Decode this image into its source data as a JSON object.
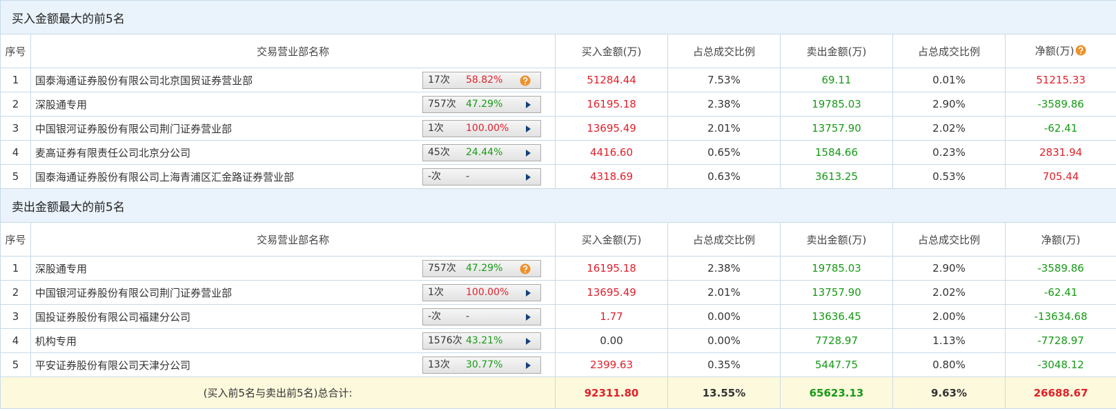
{
  "sections": [
    {
      "title": "买入金额最大的前5名",
      "header": [
        "序号",
        "交易营业部名称",
        "买入金额(万)",
        "占总成交比例",
        "卖出金额(万)",
        "占总成交比例",
        "净额(万)"
      ],
      "rows": [
        {
          "rank": "1",
          "name": "国泰海通证券股份有限公司北京国贸证券营业部",
          "count": "17次",
          "pct": "58.82%",
          "buy": "51284.44",
          "buy_ratio": "7.53%",
          "sell": "69.11",
          "sell_ratio": "0.01%",
          "net": "51215.33"
        },
        {
          "rank": "2",
          "name": "深股通专用",
          "count": "757次",
          "pct": "47.29%",
          "buy": "16195.18",
          "buy_ratio": "2.38%",
          "sell": "19785.03",
          "sell_ratio": "2.90%",
          "net": "-3589.86"
        },
        {
          "rank": "3",
          "name": "中国银河证券股份有限公司荆门证券营业部",
          "count": "1次",
          "pct": "100.00%",
          "buy": "13695.49",
          "buy_ratio": "2.01%",
          "sell": "13757.90",
          "sell_ratio": "2.02%",
          "net": "-62.41"
        },
        {
          "rank": "4",
          "name": "麦高证券有限责任公司北京分公司",
          "count": "45次",
          "pct": "24.44%",
          "buy": "4416.60",
          "buy_ratio": "0.65%",
          "sell": "1584.66",
          "sell_ratio": "0.23%",
          "net": "2831.94"
        },
        {
          "rank": "5",
          "name": "国泰海通证券股份有限公司上海青浦区汇金路证券营业部",
          "count": "-次",
          "pct": "-",
          "buy": "4318.69",
          "buy_ratio": "0.63%",
          "sell": "3613.25",
          "sell_ratio": "0.53%",
          "net": "705.44"
        }
      ]
    },
    {
      "title": "卖出金额最大的前5名",
      "header": [
        "序号",
        "交易营业部名称",
        "买入金额(万)",
        "占总成交比例",
        "卖出金额(万)",
        "占总成交比例",
        "净额(万)"
      ],
      "rows": [
        {
          "rank": "1",
          "name": "深股通专用",
          "count": "757次",
          "pct": "47.29%",
          "buy": "16195.18",
          "buy_ratio": "2.38%",
          "sell": "19785.03",
          "sell_ratio": "2.90%",
          "net": "-3589.86"
        },
        {
          "rank": "2",
          "name": "中国银河证券股份有限公司荆门证券营业部",
          "count": "1次",
          "pct": "100.00%",
          "buy": "13695.49",
          "buy_ratio": "2.01%",
          "sell": "13757.90",
          "sell_ratio": "2.02%",
          "net": "-62.41"
        },
        {
          "rank": "3",
          "name": "国投证券股份有限公司福建分公司",
          "count": "-次",
          "pct": "-",
          "buy": "1.77",
          "buy_ratio": "0.00%",
          "sell": "13636.45",
          "sell_ratio": "2.00%",
          "net": "-13634.68"
        },
        {
          "rank": "4",
          "name": "机构专用",
          "count": "1576次",
          "pct": "43.21%",
          "buy": "0.00",
          "buy_ratio": "0.00%",
          "sell": "7728.97",
          "sell_ratio": "1.13%",
          "net": "-7728.97"
        },
        {
          "rank": "5",
          "name": "平安证券股份有限公司天津分公司",
          "count": "13次",
          "pct": "30.77%",
          "buy": "2399.63",
          "buy_ratio": "0.35%",
          "sell": "5447.75",
          "sell_ratio": "0.80%",
          "net": "-3048.12"
        }
      ]
    }
  ],
  "total": {
    "label": "(买入前5名与卖出前5名)总合计:",
    "buy": "92311.80",
    "buy_ratio": "13.55%",
    "sell": "65623.13",
    "sell_ratio": "9.63%",
    "net": "26688.67"
  }
}
